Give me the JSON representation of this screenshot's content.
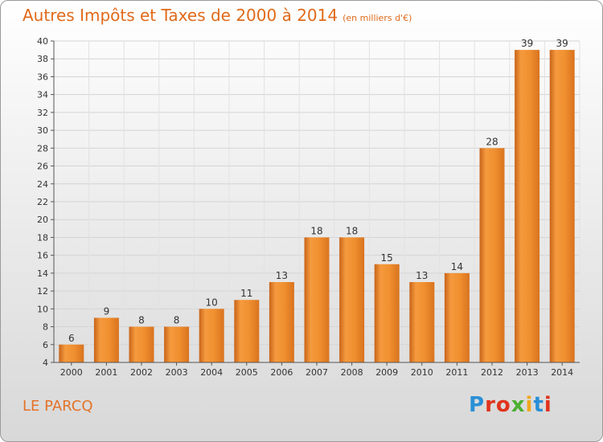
{
  "chart_data": {
    "type": "bar",
    "title": "Autres Impôts et Taxes de 2000 à 2014",
    "unit_note": "(en milliers d'€)",
    "categories": [
      "2000",
      "2001",
      "2002",
      "2003",
      "2004",
      "2005",
      "2006",
      "2007",
      "2008",
      "2009",
      "2010",
      "2011",
      "2012",
      "2013",
      "2014"
    ],
    "values": [
      6,
      9,
      8,
      8,
      10,
      11,
      13,
      18,
      18,
      15,
      13,
      14,
      28,
      39,
      39
    ],
    "ylim": [
      4,
      40
    ],
    "yticks": [
      4,
      6,
      8,
      10,
      12,
      14,
      16,
      18,
      20,
      22,
      24,
      26,
      28,
      30,
      32,
      34,
      36,
      38,
      40
    ],
    "grid": true,
    "bar_color": "#f0902f"
  },
  "footer": {
    "place": "LE PARCQ",
    "brand": "Proxiti",
    "brand_colors": [
      "#2a8fd6",
      "#e0341c",
      "#e0341c",
      "#4caf32",
      "#f0a81e",
      "#2a8fd6",
      "#e0341c"
    ]
  }
}
